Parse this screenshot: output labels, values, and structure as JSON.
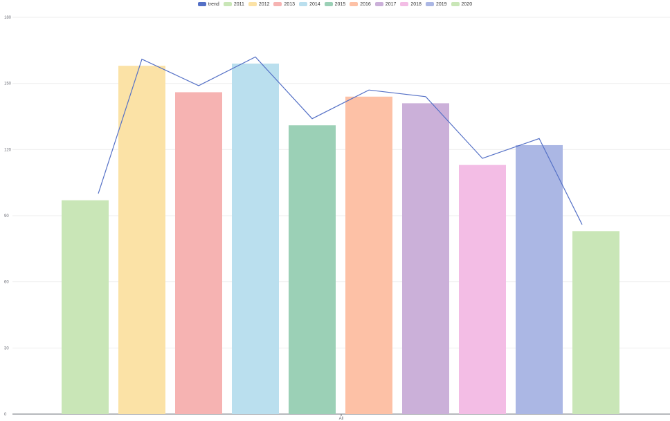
{
  "chart_data": {
    "type": "bar",
    "categories": [
      "All"
    ],
    "series": [
      {
        "name": "2011",
        "values": [
          97
        ],
        "color": "#c9e6b7"
      },
      {
        "name": "2012",
        "values": [
          158
        ],
        "color": "#fbe2a6"
      },
      {
        "name": "2013",
        "values": [
          146
        ],
        "color": "#f6b3b2"
      },
      {
        "name": "2014",
        "values": [
          159
        ],
        "color": "#badfee"
      },
      {
        "name": "2015",
        "values": [
          131
        ],
        "color": "#9bd0b6"
      },
      {
        "name": "2016",
        "values": [
          144
        ],
        "color": "#fdc1a6"
      },
      {
        "name": "2017",
        "values": [
          141
        ],
        "color": "#cbb0d9"
      },
      {
        "name": "2018",
        "values": [
          113
        ],
        "color": "#f3bde5"
      },
      {
        "name": "2019",
        "values": [
          122
        ],
        "color": "#abb7e4"
      },
      {
        "name": "2020",
        "values": [
          83
        ],
        "color": "#c9e6b7"
      }
    ],
    "trend": {
      "name": "trend",
      "color": "#5470c6",
      "values": [
        100,
        161,
        149,
        162,
        134,
        147,
        144,
        116,
        125,
        86
      ]
    },
    "ylim": [
      0,
      180
    ],
    "yticks": [
      0,
      30,
      60,
      90,
      120,
      150,
      180
    ],
    "xlabel": "",
    "ylabel": "",
    "legend_position": "top-center",
    "grid": true
  }
}
